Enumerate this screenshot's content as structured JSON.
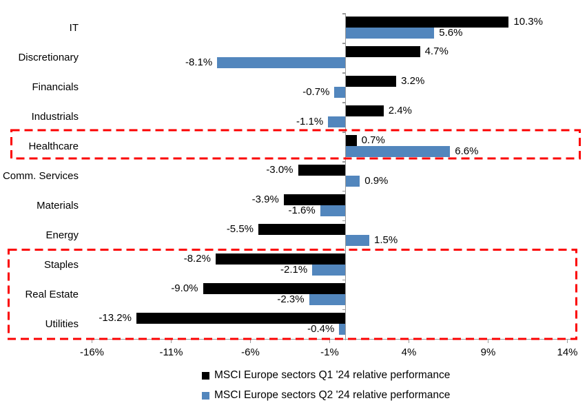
{
  "chart_data": {
    "type": "bar",
    "orientation": "horizontal",
    "title": "",
    "categories": [
      "IT",
      "Discretionary",
      "Financials",
      "Industrials",
      "Healthcare",
      "Comm. Services",
      "Materials",
      "Energy",
      "Staples",
      "Real Estate",
      "Utilities"
    ],
    "series": [
      {
        "name": "MSCI Europe sectors Q1 '24 relative performance",
        "color": "#000000",
        "values": [
          10.3,
          4.7,
          3.2,
          2.4,
          0.7,
          -3.0,
          -3.9,
          -5.5,
          -8.2,
          -9.0,
          -13.2
        ]
      },
      {
        "name": "MSCI Europe sectors Q2 '24 relative performance",
        "color": "#5286BD",
        "values": [
          5.6,
          -8.1,
          -0.7,
          -1.1,
          6.6,
          0.9,
          -1.6,
          1.5,
          -2.1,
          -2.3,
          -0.4
        ]
      }
    ],
    "data_labels": {
      "series_0": [
        "10.3%",
        "4.7%",
        "3.2%",
        "2.4%",
        "0.7%",
        "-3.0%",
        "-3.9%",
        "-5.5%",
        "-8.2%",
        "-9.0%",
        "-13.2%"
      ],
      "series_1": [
        "5.6%",
        "-8.1%",
        "-0.7%",
        "-1.1%",
        "6.6%",
        "0.9%",
        "-1.6%",
        "1.5%",
        "-2.1%",
        "-2.3%",
        "-0.4%"
      ]
    },
    "x_ticks": [
      "-16%",
      "-11%",
      "-6%",
      "-1%",
      "4%",
      "9%",
      "14%"
    ],
    "x_tick_values": [
      -16,
      -11,
      -6,
      -1,
      4,
      9,
      14
    ],
    "xlim": [
      -16.25,
      14.6
    ],
    "grid": false,
    "legend_position": "bottom-center",
    "highlight_boxes": [
      {
        "name": "healthcare-highlight",
        "categories": [
          "Healthcare"
        ],
        "rows": [
          4,
          4
        ]
      },
      {
        "name": "defensives-highlight",
        "categories": [
          "Staples",
          "Real Estate",
          "Utilities"
        ],
        "rows": [
          8,
          10
        ]
      }
    ],
    "colors": {
      "q1_bar": "#000000",
      "q2_bar": "#5286BD",
      "highlight_dash": "#FB0000",
      "axis": "#999999",
      "text": "#000000",
      "background": "#FFFFFF"
    }
  }
}
